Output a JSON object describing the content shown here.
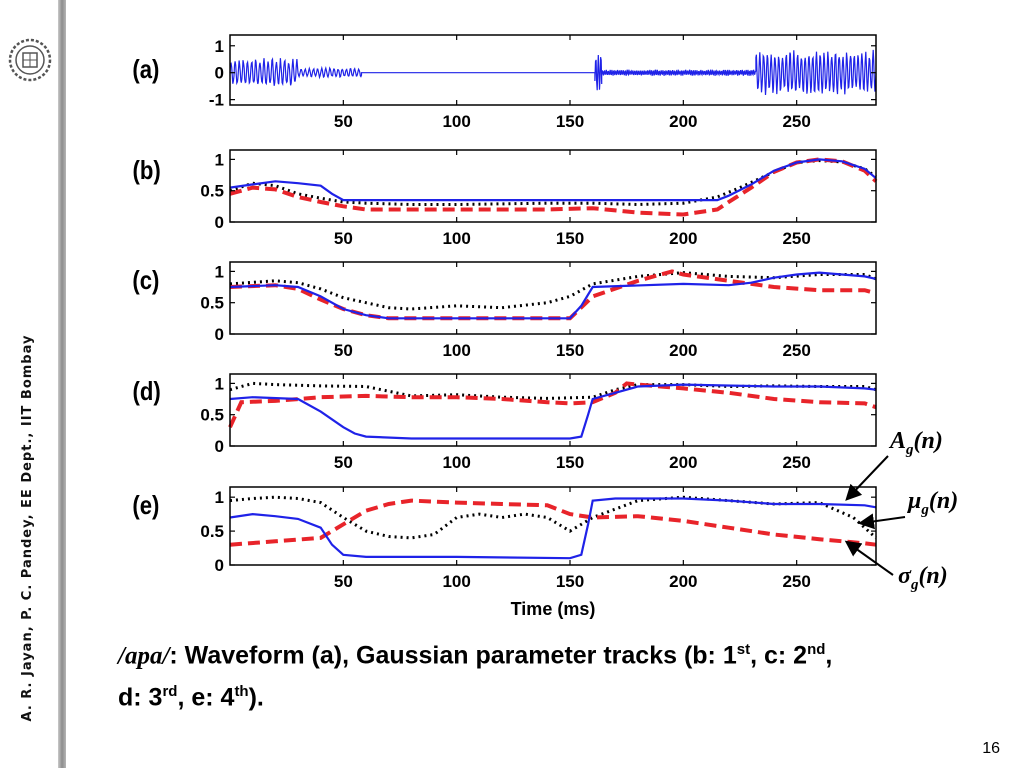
{
  "sidebar": {
    "credit": "A. R. Jayan, P. C. Pandey, EE Dept., IIT Bombay",
    "logo_icon": "iit-bombay-seal-icon"
  },
  "panel_letters": [
    "(a)",
    "(b)",
    "(c)",
    "(d)",
    "(e)"
  ],
  "caption": {
    "phoneme": "/apa/",
    "text_1": ": Waveform (a), Gaussian parameter tracks (b: 1",
    "sup_1": "st",
    "text_2": ", c: 2",
    "sup_2": "nd",
    "text_3": ",",
    "text_4": "d: 3",
    "sup_3": "rd",
    "text_5": ", e: 4",
    "sup_4": "th",
    "text_6": ")."
  },
  "legend": {
    "amp": {
      "sym": "A",
      "sub": "g",
      "arg": "(n)"
    },
    "mean": {
      "sym": "μ",
      "sub": "g",
      "arg": "(n)"
    },
    "sd": {
      "sym": "σ",
      "sub": "g",
      "arg": "(n)"
    }
  },
  "page_number": "16",
  "colors": {
    "blue": "#1f22e8",
    "red": "#e8242a",
    "black": "#000000"
  },
  "chart_data": [
    {
      "panel": "(a)",
      "type": "line",
      "xlim": [
        0,
        285
      ],
      "ylim": [
        -1.2,
        1.4
      ],
      "xticks": [
        50,
        100,
        150,
        200,
        250
      ],
      "yticks": [
        -1,
        0,
        1
      ],
      "xlabel": "",
      "ylabel": "",
      "series": [
        {
          "name": "",
          "segments": [
            {
              "x0": 0,
              "x1": 30,
              "amp": 0.55,
              "freq": 0.55
            },
            {
              "x0": 30,
              "x1": 58,
              "amp": 0.18,
              "freq": 0.55
            },
            {
              "x0": 58,
              "x1": 161,
              "amp": 0.0,
              "freq": 0.5
            },
            {
              "x0": 161,
              "x1": 164,
              "amp": 0.75,
              "freq": 0.9
            },
            {
              "x0": 164,
              "x1": 232,
              "amp": 0.12,
              "freq": 1.2
            },
            {
              "x0": 232,
              "x1": 285,
              "amp": 0.85,
              "freq": 0.6
            }
          ]
        }
      ]
    },
    {
      "panel": "(b)",
      "type": "line",
      "xlim": [
        0,
        285
      ],
      "ylim": [
        0,
        1.15
      ],
      "xticks": [
        50,
        100,
        150,
        200,
        250
      ],
      "yticks": [
        0,
        0.5,
        1
      ],
      "xlabel": "",
      "ylabel": "",
      "series": [
        {
          "name": "",
          "style": "blue",
          "x": [
            0,
            10,
            20,
            30,
            40,
            45,
            50,
            60,
            100,
            150,
            200,
            215,
            220,
            230,
            240,
            250,
            260,
            270,
            280,
            285
          ],
          "y": [
            0.55,
            0.6,
            0.65,
            0.62,
            0.58,
            0.45,
            0.35,
            0.35,
            0.35,
            0.35,
            0.35,
            0.35,
            0.42,
            0.6,
            0.82,
            0.95,
            1.0,
            0.97,
            0.85,
            0.7
          ]
        },
        {
          "name": "",
          "style": "red",
          "x": [
            0,
            10,
            20,
            30,
            40,
            50,
            60,
            80,
            100,
            120,
            140,
            160,
            180,
            200,
            215,
            220,
            230,
            240,
            250,
            260,
            270,
            280,
            285
          ],
          "y": [
            0.45,
            0.55,
            0.52,
            0.4,
            0.32,
            0.25,
            0.2,
            0.2,
            0.2,
            0.2,
            0.2,
            0.22,
            0.15,
            0.12,
            0.2,
            0.32,
            0.55,
            0.8,
            0.95,
            1.0,
            0.97,
            0.82,
            0.65
          ]
        },
        {
          "name": "",
          "style": "black",
          "x": [
            0,
            10,
            20,
            30,
            40,
            50,
            60,
            80,
            100,
            140,
            160,
            180,
            200,
            215,
            225,
            240,
            250,
            260,
            270,
            280,
            285
          ],
          "y": [
            0.5,
            0.62,
            0.58,
            0.45,
            0.38,
            0.32,
            0.3,
            0.28,
            0.28,
            0.3,
            0.3,
            0.28,
            0.3,
            0.4,
            0.55,
            0.8,
            0.95,
            0.98,
            0.96,
            0.85,
            0.72
          ]
        }
      ]
    },
    {
      "panel": "(c)",
      "type": "line",
      "xlim": [
        0,
        285
      ],
      "ylim": [
        0,
        1.15
      ],
      "xticks": [
        50,
        100,
        150,
        200,
        250
      ],
      "yticks": [
        0,
        0.5,
        1
      ],
      "xlabel": "",
      "ylabel": "",
      "series": [
        {
          "name": "",
          "style": "blue",
          "x": [
            0,
            20,
            30,
            40,
            50,
            60,
            70,
            100,
            150,
            155,
            160,
            200,
            220,
            230,
            240,
            250,
            260,
            270,
            280,
            285
          ],
          "y": [
            0.75,
            0.78,
            0.75,
            0.6,
            0.4,
            0.3,
            0.25,
            0.25,
            0.25,
            0.45,
            0.75,
            0.8,
            0.78,
            0.82,
            0.9,
            0.95,
            0.98,
            0.95,
            0.92,
            0.88
          ]
        },
        {
          "name": "",
          "style": "red",
          "x": [
            0,
            20,
            30,
            40,
            50,
            60,
            70,
            100,
            150,
            160,
            180,
            190,
            195,
            200,
            220,
            240,
            260,
            280,
            285
          ],
          "y": [
            0.75,
            0.78,
            0.72,
            0.55,
            0.4,
            0.3,
            0.25,
            0.25,
            0.25,
            0.6,
            0.85,
            0.95,
            1.0,
            0.95,
            0.85,
            0.75,
            0.7,
            0.7,
            0.65
          ]
        },
        {
          "name": "",
          "style": "black",
          "x": [
            0,
            20,
            30,
            40,
            50,
            60,
            70,
            80,
            100,
            120,
            140,
            150,
            160,
            180,
            200,
            220,
            240,
            260,
            280,
            285
          ],
          "y": [
            0.8,
            0.85,
            0.82,
            0.72,
            0.58,
            0.5,
            0.42,
            0.4,
            0.45,
            0.42,
            0.5,
            0.6,
            0.8,
            0.92,
            0.98,
            0.92,
            0.9,
            0.95,
            0.95,
            0.88
          ]
        }
      ]
    },
    {
      "panel": "(d)",
      "type": "line",
      "xlim": [
        0,
        285
      ],
      "ylim": [
        0,
        1.15
      ],
      "xticks": [
        50,
        100,
        150,
        200,
        250
      ],
      "yticks": [
        0,
        0.5,
        1
      ],
      "xlabel": "",
      "ylabel": "",
      "series": [
        {
          "name": "",
          "style": "blue",
          "x": [
            0,
            10,
            30,
            40,
            50,
            55,
            60,
            80,
            100,
            150,
            155,
            158,
            160,
            170,
            180,
            200,
            240,
            260,
            280,
            285
          ],
          "y": [
            0.75,
            0.78,
            0.75,
            0.55,
            0.3,
            0.2,
            0.15,
            0.12,
            0.12,
            0.12,
            0.15,
            0.5,
            0.75,
            0.85,
            0.95,
            0.98,
            0.95,
            0.95,
            0.92,
            0.9
          ]
        },
        {
          "name": "",
          "style": "red",
          "x": [
            0,
            5,
            20,
            40,
            60,
            80,
            100,
            120,
            140,
            150,
            160,
            170,
            175,
            180,
            190,
            200,
            220,
            240,
            260,
            280,
            285
          ],
          "y": [
            0.3,
            0.7,
            0.72,
            0.78,
            0.8,
            0.78,
            0.78,
            0.75,
            0.7,
            0.68,
            0.7,
            0.85,
            1.0,
            0.98,
            0.95,
            0.92,
            0.85,
            0.75,
            0.7,
            0.68,
            0.62
          ]
        },
        {
          "name": "",
          "style": "black",
          "x": [
            0,
            10,
            20,
            40,
            60,
            80,
            100,
            120,
            140,
            160,
            170,
            180,
            200,
            220,
            240,
            260,
            280,
            285
          ],
          "y": [
            0.9,
            1.0,
            0.98,
            0.96,
            0.95,
            0.8,
            0.82,
            0.78,
            0.76,
            0.78,
            0.9,
            0.98,
            0.98,
            0.95,
            0.96,
            0.95,
            0.95,
            0.9
          ]
        }
      ]
    },
    {
      "panel": "(e)",
      "type": "line",
      "xlim": [
        0,
        285
      ],
      "ylim": [
        0,
        1.15
      ],
      "xticks": [
        50,
        100,
        150,
        200,
        250
      ],
      "yticks": [
        0,
        0.5,
        1
      ],
      "xlabel": "Time (ms)",
      "ylabel": "",
      "series": [
        {
          "name": "",
          "style": "blue",
          "x": [
            0,
            10,
            20,
            30,
            40,
            45,
            50,
            60,
            80,
            100,
            150,
            155,
            158,
            160,
            170,
            200,
            220,
            240,
            260,
            280,
            285
          ],
          "y": [
            0.7,
            0.75,
            0.72,
            0.68,
            0.55,
            0.3,
            0.15,
            0.12,
            0.12,
            0.12,
            0.1,
            0.15,
            0.6,
            0.95,
            0.98,
            0.98,
            0.95,
            0.9,
            0.9,
            0.88,
            0.85
          ]
        },
        {
          "name": "",
          "style": "red",
          "x": [
            0,
            20,
            40,
            50,
            60,
            70,
            80,
            100,
            120,
            140,
            150,
            160,
            180,
            200,
            220,
            240,
            260,
            280,
            285
          ],
          "y": [
            0.3,
            0.35,
            0.4,
            0.6,
            0.8,
            0.9,
            0.95,
            0.92,
            0.9,
            0.88,
            0.75,
            0.7,
            0.72,
            0.65,
            0.55,
            0.45,
            0.38,
            0.32,
            0.3
          ]
        },
        {
          "name": "",
          "style": "black",
          "x": [
            0,
            10,
            20,
            30,
            40,
            50,
            60,
            70,
            80,
            90,
            100,
            110,
            120,
            130,
            140,
            150,
            160,
            180,
            200,
            220,
            240,
            260,
            275,
            285
          ],
          "y": [
            0.95,
            0.98,
            1.0,
            0.98,
            0.92,
            0.7,
            0.5,
            0.42,
            0.4,
            0.45,
            0.7,
            0.75,
            0.7,
            0.75,
            0.7,
            0.5,
            0.7,
            0.95,
            1.0,
            0.95,
            0.9,
            0.92,
            0.7,
            0.4
          ]
        }
      ]
    }
  ]
}
